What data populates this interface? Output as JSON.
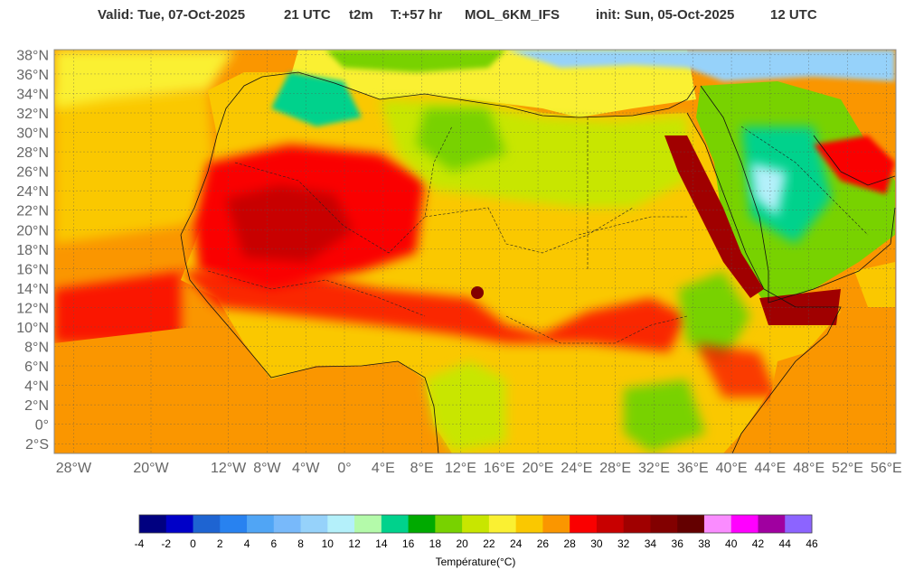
{
  "header": {
    "valid": "Valid: Tue, 07-Oct-2025",
    "valid_hour": "21 UTC",
    "variable": "t2m",
    "lead": "T:+57 hr",
    "model": "MOL_6KM_IFS",
    "init": "init: Sun, 05-Oct-2025",
    "init_hour": "12 UTC"
  },
  "axes": {
    "lat_labels": [
      "38°N",
      "36°N",
      "34°N",
      "32°N",
      "30°N",
      "28°N",
      "26°N",
      "24°N",
      "22°N",
      "20°N",
      "18°N",
      "16°N",
      "14°N",
      "12°N",
      "10°N",
      "8°N",
      "6°N",
      "4°N",
      "2°N",
      "0°",
      "2°S"
    ],
    "lon_labels": [
      "28°W",
      "20°W",
      "12°W",
      "8°W",
      "4°W",
      "0°",
      "4°E",
      "8°E",
      "12°E",
      "16°E",
      "20°E",
      "24°E",
      "28°E",
      "32°E",
      "36°E",
      "40°E",
      "44°E",
      "48°E",
      "52°E",
      "56°E"
    ],
    "lat_values": [
      38,
      36,
      34,
      32,
      30,
      28,
      26,
      24,
      22,
      20,
      18,
      16,
      14,
      12,
      10,
      8,
      6,
      4,
      2,
      0,
      -2
    ],
    "lon_values": [
      -28,
      -20,
      -12,
      -8,
      -4,
      0,
      4,
      8,
      12,
      16,
      20,
      24,
      28,
      32,
      36,
      40,
      44,
      48,
      52,
      56
    ],
    "lon_range": [
      -30,
      57
    ],
    "lat_range": [
      -3,
      38.5
    ],
    "grid": true
  },
  "colorbar": {
    "title": "Température(°C)",
    "ticks": [
      "-4",
      "-2",
      "0",
      "2",
      "4",
      "6",
      "8",
      "10",
      "12",
      "14",
      "16",
      "18",
      "20",
      "22",
      "24",
      "26",
      "28",
      "30",
      "32",
      "34",
      "36",
      "38",
      "40",
      "42",
      "44",
      "46"
    ],
    "colors": [
      "#000080",
      "#0000c8",
      "#1e64d2",
      "#2882f0",
      "#50a5f5",
      "#78b9fa",
      "#96d2fa",
      "#b4f0fa",
      "#b4faaa",
      "#00d28c",
      "#00aa00",
      "#78d200",
      "#c8e600",
      "#faf032",
      "#fac800",
      "#fa9600",
      "#fa0000",
      "#c80000",
      "#a00000",
      "#820000",
      "#640000",
      "#fa8cff",
      "#ff00ff",
      "#a000a0",
      "#8c64ff"
    ]
  }
}
